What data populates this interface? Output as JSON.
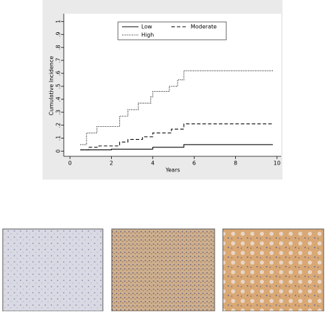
{
  "chart_data": {
    "type": "line",
    "step": true,
    "xlabel": "Years",
    "ylabel": "Cumulative Incidence",
    "xlim": [
      -0.3,
      10.2
    ],
    "ylim": [
      -0.04,
      1.06
    ],
    "xticks": [
      0,
      2,
      4,
      6,
      8,
      10
    ],
    "yticks": [
      0,
      {
        "value": 0.1,
        "label": ".1"
      },
      {
        "value": 0.2,
        "label": ".2"
      },
      {
        "value": 0.3,
        "label": ".3"
      },
      {
        "value": 0.4,
        "label": ".4"
      },
      {
        "value": 0.5,
        "label": ".5"
      },
      {
        "value": 0.6,
        "label": ".6"
      },
      {
        "value": 0.7,
        "label": ".7"
      },
      {
        "value": 0.8,
        "label": ".8"
      },
      {
        "value": 0.9,
        "label": ".9"
      },
      1
    ],
    "legend": "top",
    "series": [
      {
        "name": "Low",
        "color": "#000000",
        "dash": "solid",
        "x": [
          0.5,
          2.0,
          4.0,
          5.5,
          9.8
        ],
        "values": [
          0.01,
          0.015,
          0.03,
          0.05,
          0.05
        ]
      },
      {
        "name": "Moderate",
        "color": "#000000",
        "dash": "dashed",
        "x": [
          0.5,
          0.9,
          1.4,
          2.4,
          2.8,
          3.5,
          4.0,
          4.9,
          5.5,
          9.8
        ],
        "values": [
          0.01,
          0.03,
          0.04,
          0.07,
          0.09,
          0.11,
          0.14,
          0.17,
          0.21,
          0.21
        ]
      },
      {
        "name": "High",
        "color": "#000000",
        "dash": "dotted",
        "x": [
          0.5,
          0.8,
          1.3,
          2.4,
          2.8,
          3.3,
          3.9,
          4.0,
          4.8,
          5.2,
          5.5,
          9.8
        ],
        "values": [
          0.05,
          0.14,
          0.19,
          0.27,
          0.32,
          0.37,
          0.42,
          0.46,
          0.5,
          0.55,
          0.62,
          0.62
        ]
      }
    ]
  }
}
